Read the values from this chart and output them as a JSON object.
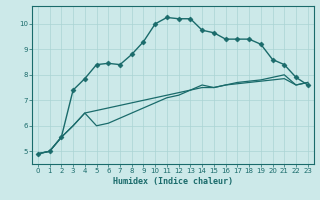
{
  "xlabel": "Humidex (Indice chaleur)",
  "xlim": [
    -0.5,
    23.5
  ],
  "ylim": [
    4.5,
    10.7
  ],
  "xticks": [
    0,
    1,
    2,
    3,
    4,
    5,
    6,
    7,
    8,
    9,
    10,
    11,
    12,
    13,
    14,
    15,
    16,
    17,
    18,
    19,
    20,
    21,
    22,
    23
  ],
  "yticks": [
    5,
    6,
    7,
    8,
    9,
    10
  ],
  "background_color": "#cce9e9",
  "grid_color": "#aad4d4",
  "line_color": "#1a6b6b",
  "lines": [
    {
      "x": [
        0,
        1,
        2,
        3,
        4,
        5,
        6,
        7,
        8,
        9,
        10,
        11,
        12,
        13,
        14,
        15,
        16,
        17,
        18,
        19,
        20,
        21,
        22,
        23
      ],
      "y": [
        4.9,
        5.0,
        5.55,
        7.4,
        7.85,
        8.4,
        8.45,
        8.4,
        8.8,
        9.3,
        10.0,
        10.25,
        10.2,
        10.2,
        9.75,
        9.65,
        9.4,
        9.4,
        9.4,
        9.2,
        8.6,
        8.4,
        7.9,
        7.6
      ],
      "marker": "D",
      "markersize": 2.5,
      "linewidth": 1.0
    },
    {
      "x": [
        0,
        1,
        2,
        3,
        4,
        5,
        6,
        7,
        8,
        9,
        10,
        11,
        12,
        13,
        14,
        15,
        16,
        17,
        18,
        19,
        20,
        21,
        22,
        23
      ],
      "y": [
        4.9,
        5.0,
        5.55,
        6.0,
        6.5,
        6.6,
        6.7,
        6.8,
        6.9,
        7.0,
        7.1,
        7.2,
        7.3,
        7.4,
        7.5,
        7.5,
        7.6,
        7.65,
        7.7,
        7.75,
        7.8,
        7.85,
        7.6,
        7.7
      ],
      "marker": null,
      "linewidth": 0.9
    },
    {
      "x": [
        0,
        1,
        2,
        3,
        4,
        5,
        6,
        7,
        8,
        9,
        10,
        11,
        12,
        13,
        14,
        15,
        16,
        17,
        18,
        19,
        20,
        21,
        22,
        23
      ],
      "y": [
        4.9,
        5.0,
        5.55,
        6.0,
        6.5,
        6.0,
        6.1,
        6.3,
        6.5,
        6.7,
        6.9,
        7.1,
        7.2,
        7.4,
        7.6,
        7.5,
        7.6,
        7.7,
        7.75,
        7.8,
        7.9,
        8.0,
        7.6,
        7.7
      ],
      "marker": null,
      "linewidth": 0.9
    }
  ]
}
